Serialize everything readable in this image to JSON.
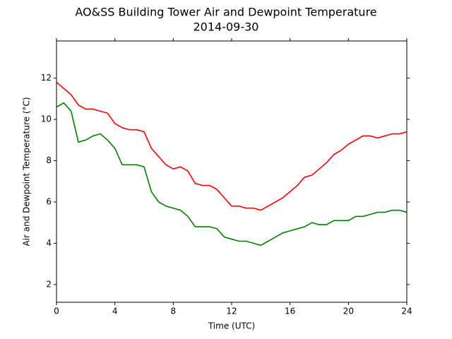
{
  "chart_data": {
    "type": "line",
    "title": "AO&SS Building Tower Air and Dewpoint Temperature",
    "subtitle": "2014-09-30",
    "x_label": "Time (UTC)",
    "y_label": "Air and Dewpoint Temperature (°C)",
    "x": [
      0,
      0.5,
      1,
      1.5,
      2,
      2.5,
      3,
      3.5,
      4,
      4.5,
      5,
      5.5,
      6,
      6.5,
      7,
      7.5,
      8,
      8.5,
      9,
      9.5,
      10,
      10.5,
      11,
      11.5,
      12,
      12.5,
      13,
      13.5,
      14,
      14.5,
      15,
      15.5,
      16,
      16.5,
      17,
      17.5,
      18,
      18.5,
      19,
      19.5,
      20,
      20.5,
      21,
      21.5,
      22,
      22.5,
      23,
      23.5,
      24
    ],
    "series": [
      {
        "color": "#ff0000",
        "values": [
          11.8,
          11.5,
          11.2,
          10.7,
          10.5,
          10.5,
          10.4,
          10.3,
          9.8,
          9.6,
          9.5,
          9.5,
          9.4,
          8.6,
          8.2,
          7.8,
          7.6,
          7.7,
          7.5,
          6.9,
          6.8,
          6.8,
          6.6,
          6.2,
          5.8,
          5.8,
          5.7,
          5.7,
          5.6,
          5.8,
          6.0,
          6.2,
          6.5,
          6.8,
          7.2,
          7.3,
          7.6,
          7.9,
          8.3,
          8.5,
          8.8,
          9.0,
          9.2,
          9.2,
          9.1,
          9.2,
          9.3,
          9.3,
          9.4
        ]
      },
      {
        "color": "#008000",
        "values": [
          10.6,
          10.8,
          10.4,
          8.9,
          9.0,
          9.2,
          9.3,
          9.0,
          8.6,
          7.8,
          7.8,
          7.8,
          7.7,
          6.5,
          6.0,
          5.8,
          5.7,
          5.6,
          5.3,
          4.8,
          4.8,
          4.8,
          4.7,
          4.3,
          4.2,
          4.1,
          4.1,
          4.0,
          3.9,
          4.1,
          4.3,
          4.5,
          4.6,
          4.7,
          4.8,
          5.0,
          4.9,
          4.9,
          5.1,
          5.1,
          5.1,
          5.3,
          5.3,
          5.4,
          5.5,
          5.5,
          5.6,
          5.6,
          5.5
        ]
      }
    ],
    "xlim": [
      0,
      24
    ],
    "xticks": [
      0,
      4,
      8,
      12,
      16,
      20,
      24
    ],
    "ylim": [
      1.14,
      13.8
    ],
    "yticks": [
      2,
      4,
      6,
      8,
      10,
      12
    ],
    "grid": false
  }
}
